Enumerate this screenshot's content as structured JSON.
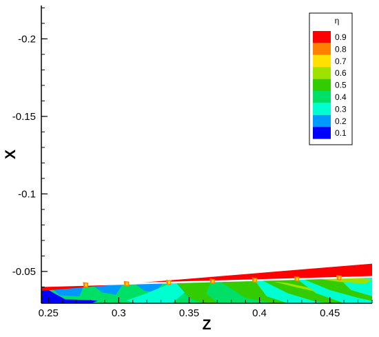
{
  "chart_data": {
    "type": "heatmap",
    "title": "",
    "xlabel": "Z",
    "ylabel": "X",
    "xlim": [
      0.245,
      0.48
    ],
    "ylim": [
      -0.0295,
      -0.2215
    ],
    "xticks": [
      0.25,
      0.3,
      0.35,
      0.4,
      0.45
    ],
    "xtick_labels": [
      "0.25",
      "0.3",
      "0.35",
      "0.4",
      "0.45"
    ],
    "yticks": [
      -0.05,
      -0.1,
      -0.15,
      -0.2
    ],
    "ytick_labels": [
      "-0.05",
      "-0.1",
      "-0.15",
      "-0.2"
    ],
    "legend": {
      "title": "η",
      "position": "top-right",
      "levels": [
        {
          "label": "0.9",
          "color": "#ff0000"
        },
        {
          "label": "0.8",
          "color": "#ff7f00"
        },
        {
          "label": "0.7",
          "color": "#ffe000"
        },
        {
          "label": "0.6",
          "color": "#9ee300"
        },
        {
          "label": "0.5",
          "color": "#33cc00"
        },
        {
          "label": "0.4",
          "color": "#00e066"
        },
        {
          "label": "0.3",
          "color": "#00ffd0"
        },
        {
          "label": "0.2",
          "color": "#0099ff"
        },
        {
          "label": "0.1",
          "color": "#0000ff"
        }
      ]
    },
    "wall_edge": {
      "z": [
        0.245,
        0.48
      ],
      "x": [
        -0.0405,
        -0.0465
      ]
    },
    "film_band": {
      "z": [
        0.245,
        0.48
      ],
      "x_outer": [
        -0.0375,
        -0.055
      ],
      "value": 0.9
    },
    "hole_centers_z": [
      0.277,
      0.306,
      0.336,
      0.367,
      0.397,
      0.427,
      0.457
    ],
    "field_regions": [
      {
        "level": 0.1,
        "polygon": [
          [
            0.245,
            -0.0405
          ],
          [
            0.262,
            -0.032
          ],
          [
            0.28,
            -0.0315
          ],
          [
            0.3,
            -0.0295
          ],
          [
            0.245,
            -0.0295
          ]
        ]
      },
      {
        "level": 0.2,
        "polygon": [
          [
            0.252,
            -0.0395
          ],
          [
            0.275,
            -0.0405
          ],
          [
            0.272,
            -0.034
          ],
          [
            0.258,
            -0.0345
          ]
        ]
      },
      {
        "level": 0.2,
        "polygon": [
          [
            0.281,
            -0.0415
          ],
          [
            0.303,
            -0.042
          ],
          [
            0.298,
            -0.035
          ],
          [
            0.288,
            -0.0365
          ]
        ]
      },
      {
        "level": 0.2,
        "polygon": [
          [
            0.311,
            -0.0425
          ],
          [
            0.332,
            -0.043
          ],
          [
            0.326,
            -0.0365
          ],
          [
            0.318,
            -0.0375
          ]
        ]
      },
      {
        "level": 0.3,
        "polygon": [
          [
            0.3,
            -0.0295
          ],
          [
            0.32,
            -0.036
          ],
          [
            0.34,
            -0.0435
          ],
          [
            0.48,
            -0.0465
          ],
          [
            0.48,
            -0.0295
          ]
        ]
      },
      {
        "level": 0.4,
        "polygon": [
          [
            0.28,
            -0.0295
          ],
          [
            0.295,
            -0.034
          ],
          [
            0.312,
            -0.0295
          ]
        ]
      },
      {
        "level": 0.4,
        "polygon": [
          [
            0.338,
            -0.0295
          ],
          [
            0.35,
            -0.039
          ],
          [
            0.37,
            -0.0445
          ],
          [
            0.41,
            -0.0295
          ]
        ]
      },
      {
        "level": 0.5,
        "polygon": [
          [
            0.34,
            -0.0435
          ],
          [
            0.35,
            -0.033
          ],
          [
            0.36,
            -0.0295
          ],
          [
            0.37,
            -0.0295
          ],
          [
            0.362,
            -0.036
          ],
          [
            0.366,
            -0.0445
          ]
        ]
      },
      {
        "level": 0.5,
        "polygon": [
          [
            0.37,
            -0.0445
          ],
          [
            0.39,
            -0.033
          ],
          [
            0.41,
            -0.0295
          ],
          [
            0.42,
            -0.0295
          ],
          [
            0.405,
            -0.034
          ],
          [
            0.396,
            -0.045
          ]
        ]
      },
      {
        "level": 0.5,
        "polygon": [
          [
            0.4,
            -0.045
          ],
          [
            0.42,
            -0.036
          ],
          [
            0.44,
            -0.0305
          ],
          [
            0.45,
            -0.0295
          ],
          [
            0.46,
            -0.0295
          ],
          [
            0.44,
            -0.036
          ],
          [
            0.426,
            -0.0455
          ]
        ]
      },
      {
        "level": 0.5,
        "polygon": [
          [
            0.43,
            -0.0455
          ],
          [
            0.45,
            -0.038
          ],
          [
            0.47,
            -0.033
          ],
          [
            0.48,
            -0.031
          ],
          [
            0.48,
            -0.034
          ],
          [
            0.465,
            -0.038
          ],
          [
            0.456,
            -0.046
          ]
        ]
      },
      {
        "level": 0.6,
        "polygon": [
          [
            0.44,
            -0.0455
          ],
          [
            0.455,
            -0.0435
          ],
          [
            0.475,
            -0.042
          ],
          [
            0.48,
            -0.045
          ],
          [
            0.46,
            -0.0462
          ]
        ]
      },
      {
        "level": 0.6,
        "polygon": [
          [
            0.41,
            -0.0435
          ],
          [
            0.425,
            -0.04
          ],
          [
            0.44,
            -0.037
          ],
          [
            0.435,
            -0.0395
          ],
          [
            0.42,
            -0.0425
          ]
        ]
      }
    ]
  }
}
